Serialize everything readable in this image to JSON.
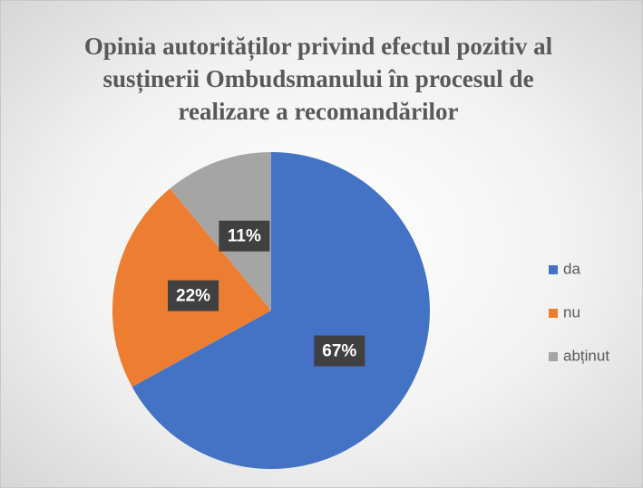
{
  "chart_data": {
    "type": "pie",
    "title": "Opinia autorităților privind efectul pozitiv al susținerii Ombudsmanului în procesul de realizare a recomandărilor",
    "categories": [
      "da",
      "nu",
      "abținut"
    ],
    "values": [
      67,
      22,
      11
    ],
    "value_labels": [
      "67%",
      "22%",
      "11%"
    ],
    "colors": [
      "#4472c4",
      "#ed7d31",
      "#a5a5a5"
    ],
    "legend": "right"
  }
}
